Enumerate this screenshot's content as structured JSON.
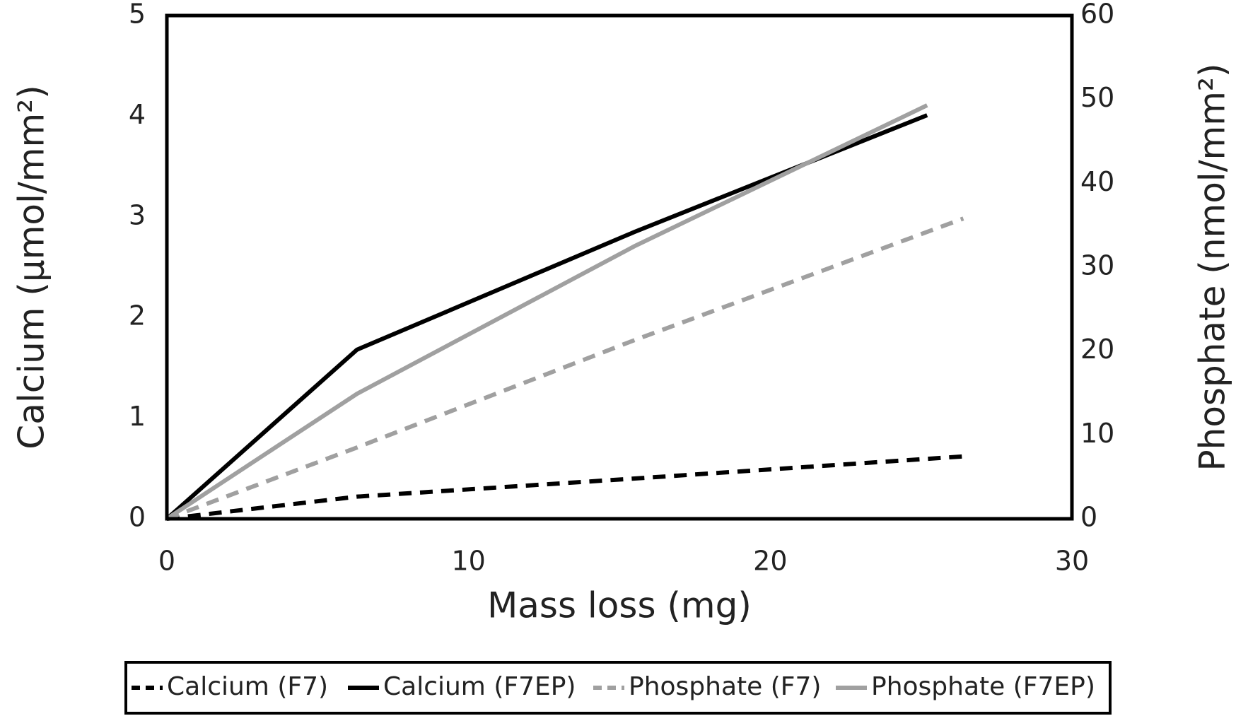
{
  "chart_data": {
    "type": "line",
    "xlabel": "Mass loss (mg)",
    "ylabel": "Calcium (µmol/mm²)",
    "y2label": "Phosphate (nmol/mm²)",
    "xlim": [
      0,
      30
    ],
    "xticks": [
      0,
      10,
      20,
      30
    ],
    "ylim": [
      0,
      5
    ],
    "yticks": [
      0,
      1,
      2,
      3,
      4,
      5
    ],
    "y2lim": [
      0,
      60
    ],
    "y2ticks": [
      0,
      10,
      20,
      30,
      40,
      50,
      60
    ],
    "grid": false,
    "legend": "bottom",
    "series": [
      {
        "name": "Calcium (F7)",
        "color": "#000000",
        "dashed": true,
        "x": [
          0,
          6.3,
          15.5,
          26.4
        ],
        "values": [
          0,
          0.22,
          0.4,
          0.62
        ]
      },
      {
        "name": "Calcium (F7EP)",
        "color": "#000000",
        "dashed": false,
        "x": [
          0,
          6.3,
          15.5,
          25.2
        ],
        "values": [
          0,
          1.68,
          2.85,
          4.01
        ]
      },
      {
        "name": "Phosphate (F7)",
        "color": "#a0a0a0",
        "dashed": true,
        "axis": "y2",
        "x": [
          0,
          6.3,
          15.5,
          26.4
        ],
        "values": [
          0,
          8.5,
          21.3,
          35.8
        ]
      },
      {
        "name": "Phosphate (F7EP)",
        "color": "#a0a0a0",
        "dashed": false,
        "axis": "y2",
        "x": [
          0,
          6.3,
          15.5,
          25.2
        ],
        "values": [
          0,
          14.9,
          32.5,
          49.3
        ]
      }
    ]
  }
}
